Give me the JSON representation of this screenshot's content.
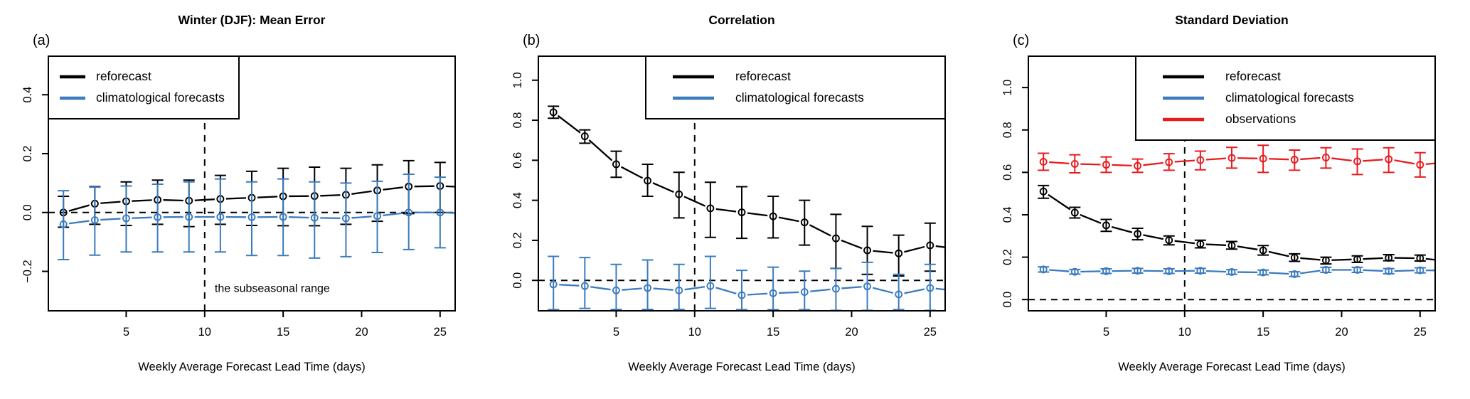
{
  "style": {
    "background": "#ffffff",
    "axis_color": "#000000",
    "text_color": "#000000",
    "reforecast_color": "#000000",
    "climatological_color": "#3b7bbf",
    "observations_color": "#e81b1d"
  },
  "chart_data": [
    {
      "type": "line",
      "panel_label": "(a)",
      "title": "Winter (DJF): Mean Error",
      "xlabel": "Weekly Average Forecast Lead Time (days)",
      "xlim": [
        0.04,
        25.96
      ],
      "ylim": [
        -0.334,
        0.531
      ],
      "xticks": [
        5,
        10,
        15,
        20,
        25
      ],
      "yticks": [
        {
          "v": -0.2,
          "label": "−0.2"
        },
        {
          "v": 0.0,
          "label": "0.0"
        },
        {
          "v": 0.2,
          "label": "0.2"
        },
        {
          "v": 0.4,
          "label": "0.4"
        }
      ],
      "hline": 0.0,
      "vline": 10,
      "annotation": {
        "text": "the subseasonal range",
        "x": 10.55,
        "y": -0.27
      },
      "legend": {
        "position": "top-left",
        "entries": [
          {
            "label": "reforecast",
            "color": "#000000"
          },
          {
            "label": "climatological forecasts",
            "color": "#3b7bbf"
          }
        ]
      },
      "x": [
        1,
        3,
        5,
        7,
        9,
        11,
        13,
        15,
        17,
        19,
        21,
        23,
        25
      ],
      "series": [
        {
          "name": "reforecast",
          "color": "#000000",
          "y": [
            0.0,
            0.03,
            0.038,
            0.043,
            0.04,
            0.046,
            0.05,
            0.055,
            0.056,
            0.06,
            0.075,
            0.088,
            0.09
          ],
          "err_lo": [
            -0.05,
            -0.04,
            -0.044,
            -0.04,
            -0.048,
            -0.04,
            -0.044,
            -0.045,
            -0.045,
            -0.04,
            -0.03,
            -0.004,
            0.0
          ],
          "err_hi": [
            0.055,
            0.088,
            0.104,
            0.11,
            0.11,
            0.126,
            0.14,
            0.15,
            0.154,
            0.15,
            0.162,
            0.176,
            0.17
          ],
          "edge_y": 0.085
        },
        {
          "name": "climatological forecasts",
          "color": "#3b7bbf",
          "y": [
            -0.04,
            -0.026,
            -0.02,
            -0.016,
            -0.015,
            -0.015,
            -0.016,
            -0.015,
            -0.018,
            -0.02,
            -0.012,
            0.0,
            0.0
          ],
          "err_lo": [
            -0.16,
            -0.145,
            -0.134,
            -0.134,
            -0.134,
            -0.134,
            -0.146,
            -0.146,
            -0.155,
            -0.15,
            -0.136,
            -0.126,
            -0.12
          ],
          "err_hi": [
            0.074,
            0.086,
            0.09,
            0.096,
            0.104,
            0.114,
            0.104,
            0.114,
            0.104,
            0.1,
            0.106,
            0.13,
            0.12
          ],
          "edge_y": -0.004
        }
      ]
    },
    {
      "type": "line",
      "panel_label": "(b)",
      "title": "Correlation",
      "xlabel": "Weekly Average Forecast Lead Time (days)",
      "xlim": [
        0.04,
        25.96
      ],
      "ylim": [
        -0.152,
        1.12
      ],
      "xticks": [
        5,
        10,
        15,
        20,
        25
      ],
      "yticks": [
        {
          "v": 0.0,
          "label": "0.0"
        },
        {
          "v": 0.2,
          "label": "0.2"
        },
        {
          "v": 0.4,
          "label": "0.4"
        },
        {
          "v": 0.6,
          "label": "0.6"
        },
        {
          "v": 0.8,
          "label": "0.8"
        },
        {
          "v": 1.0,
          "label": "1.0"
        }
      ],
      "hline": 0.0,
      "vline": 10,
      "annotation": null,
      "legend": {
        "position": "top-right",
        "entries": [
          {
            "label": "reforecast",
            "color": "#000000"
          },
          {
            "label": "climatological forecasts",
            "color": "#3b7bbf"
          }
        ]
      },
      "x": [
        1,
        3,
        5,
        7,
        9,
        11,
        13,
        15,
        17,
        19,
        21,
        23,
        25
      ],
      "series": [
        {
          "name": "reforecast",
          "color": "#000000",
          "y": [
            0.84,
            0.72,
            0.58,
            0.498,
            0.43,
            0.36,
            0.34,
            0.32,
            0.29,
            0.21,
            0.15,
            0.135,
            0.175
          ],
          "err_lo": [
            0.81,
            0.685,
            0.515,
            0.42,
            0.312,
            0.215,
            0.21,
            0.212,
            0.176,
            0.06,
            0.03,
            0.022,
            0.046
          ],
          "err_hi": [
            0.87,
            0.752,
            0.645,
            0.58,
            0.54,
            0.49,
            0.468,
            0.42,
            0.4,
            0.33,
            0.27,
            0.226,
            0.286
          ],
          "edge_y": 0.155
        },
        {
          "name": "climatological forecasts",
          "color": "#3b7bbf",
          "y": [
            -0.02,
            -0.028,
            -0.05,
            -0.038,
            -0.05,
            -0.028,
            -0.074,
            -0.064,
            -0.058,
            -0.042,
            -0.03,
            -0.07,
            -0.038
          ],
          "err_lo": [
            -0.146,
            -0.14,
            -0.145,
            -0.145,
            -0.145,
            -0.14,
            -0.146,
            -0.146,
            -0.146,
            -0.15,
            -0.15,
            -0.146,
            -0.15
          ],
          "err_hi": [
            0.12,
            0.114,
            0.08,
            0.102,
            0.08,
            0.12,
            0.05,
            0.066,
            0.046,
            0.06,
            0.09,
            0.03,
            0.08
          ],
          "edge_y": -0.055
        }
      ]
    },
    {
      "type": "line",
      "panel_label": "(c)",
      "title": "Standard Deviation",
      "xlabel": "Weekly Average Forecast Lead Time (days)",
      "xlim": [
        0.04,
        25.96
      ],
      "ylim": [
        -0.053,
        1.148
      ],
      "xticks": [
        5,
        10,
        15,
        20,
        25
      ],
      "yticks": [
        {
          "v": 0.0,
          "label": "0.0"
        },
        {
          "v": 0.2,
          "label": "0.2"
        },
        {
          "v": 0.4,
          "label": "0.4"
        },
        {
          "v": 0.6,
          "label": "0.6"
        },
        {
          "v": 0.8,
          "label": "0.8"
        },
        {
          "v": 1.0,
          "label": "1.0"
        }
      ],
      "hline": 0.0,
      "vline": 10,
      "annotation": null,
      "legend": {
        "position": "top-right",
        "entries": [
          {
            "label": "reforecast",
            "color": "#000000"
          },
          {
            "label": "climatological forecasts",
            "color": "#3b7bbf"
          },
          {
            "label": "observations",
            "color": "#e81b1d"
          }
        ]
      },
      "x": [
        1,
        3,
        5,
        7,
        9,
        11,
        13,
        15,
        17,
        19,
        21,
        23,
        25
      ],
      "series": [
        {
          "name": "reforecast",
          "color": "#000000",
          "y": [
            0.51,
            0.41,
            0.35,
            0.31,
            0.28,
            0.262,
            0.255,
            0.232,
            0.198,
            0.185,
            0.19,
            0.197,
            0.195
          ],
          "err_lo": [
            0.478,
            0.385,
            0.322,
            0.282,
            0.258,
            0.244,
            0.238,
            0.21,
            0.18,
            0.168,
            0.175,
            0.183,
            0.182
          ],
          "err_hi": [
            0.538,
            0.435,
            0.378,
            0.336,
            0.3,
            0.28,
            0.274,
            0.255,
            0.216,
            0.2,
            0.206,
            0.212,
            0.21
          ],
          "edge_y": 0.18
        },
        {
          "name": "climatological forecasts",
          "color": "#3b7bbf",
          "y": [
            0.142,
            0.131,
            0.134,
            0.136,
            0.134,
            0.136,
            0.13,
            0.128,
            0.12,
            0.14,
            0.14,
            0.134,
            0.138
          ],
          "err_lo": [
            0.13,
            0.12,
            0.123,
            0.125,
            0.123,
            0.125,
            0.119,
            0.117,
            0.109,
            0.128,
            0.128,
            0.122,
            0.126
          ],
          "err_hi": [
            0.154,
            0.142,
            0.145,
            0.147,
            0.145,
            0.147,
            0.141,
            0.139,
            0.131,
            0.152,
            0.152,
            0.146,
            0.15
          ],
          "edge_y": 0.137
        },
        {
          "name": "observations",
          "color": "#e81b1d",
          "y": [
            0.65,
            0.64,
            0.636,
            0.631,
            0.648,
            0.658,
            0.668,
            0.665,
            0.66,
            0.67,
            0.652,
            0.662,
            0.636
          ],
          "err_lo": [
            0.61,
            0.598,
            0.6,
            0.6,
            0.61,
            0.612,
            0.62,
            0.6,
            0.61,
            0.62,
            0.59,
            0.6,
            0.578
          ],
          "err_hi": [
            0.69,
            0.683,
            0.673,
            0.663,
            0.688,
            0.7,
            0.718,
            0.728,
            0.705,
            0.716,
            0.71,
            0.716,
            0.693
          ],
          "edge_y": 0.65
        }
      ]
    }
  ]
}
